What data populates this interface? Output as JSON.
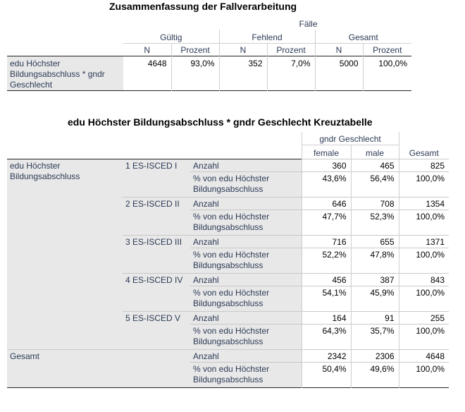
{
  "summary": {
    "title": "Zusammenfassung der Fallverarbeitung",
    "faelle": "Fälle",
    "groups": [
      "Gültig",
      "Fehlend",
      "Gesamt"
    ],
    "subcols": [
      "N",
      "Prozent",
      "N",
      "Prozent",
      "N",
      "Prozent"
    ],
    "row_label": "edu Höchster Bildungsabschluss * gndr Geschlecht",
    "values": [
      "4648",
      "93,0%",
      "352",
      "7,0%",
      "5000",
      "100,0%"
    ]
  },
  "crosstab": {
    "title": "edu Höchster Bildungsabschluss * gndr Geschlecht Kreuztabelle",
    "col_group": "gndr Geschlecht",
    "cols": [
      "female",
      "male"
    ],
    "col_total": "Gesamt",
    "row_var": "edu Höchster Bildungsabschluss",
    "stat_count": "Anzahl",
    "stat_pct": "% von edu Höchster Bildungsabschluss",
    "rows": [
      {
        "label": "1 ES-ISCED I",
        "count": [
          "360",
          "465",
          "825"
        ],
        "pct": [
          "43,6%",
          "56,4%",
          "100,0%"
        ]
      },
      {
        "label": "2 ES-ISCED II",
        "count": [
          "646",
          "708",
          "1354"
        ],
        "pct": [
          "47,7%",
          "52,3%",
          "100,0%"
        ]
      },
      {
        "label": "3 ES-ISCED III",
        "count": [
          "716",
          "655",
          "1371"
        ],
        "pct": [
          "52,2%",
          "47,8%",
          "100,0%"
        ]
      },
      {
        "label": "4 ES-ISCED IV",
        "count": [
          "456",
          "387",
          "843"
        ],
        "pct": [
          "54,1%",
          "45,9%",
          "100,0%"
        ]
      },
      {
        "label": "5 ES-ISCED V",
        "count": [
          "164",
          "91",
          "255"
        ],
        "pct": [
          "64,3%",
          "35,7%",
          "100,0%"
        ]
      }
    ],
    "total": {
      "label": "Gesamt",
      "count": [
        "2342",
        "2306",
        "4648"
      ],
      "pct": [
        "50,4%",
        "49,6%",
        "100,0%"
      ]
    }
  }
}
